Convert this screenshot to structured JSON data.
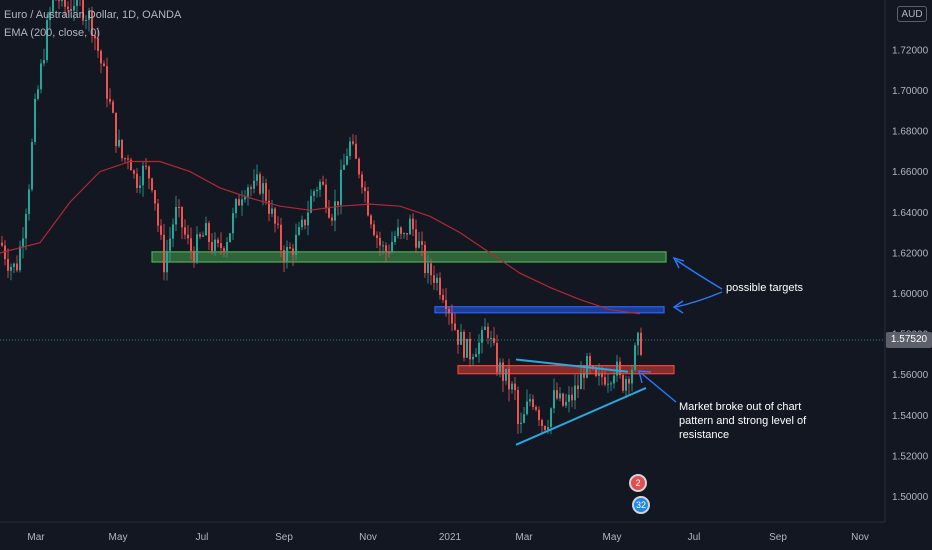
{
  "header": {
    "title": "Euro / Australian Dollar, 1D, OANDA",
    "indicator": "EMA (200, close, 0)",
    "currency": "AUD"
  },
  "last_price": "1.57520",
  "annotations": {
    "targets": "possible targets",
    "breakout": "Market broke out of chart pattern and strong level of resistance"
  },
  "events": {
    "count_top": "2",
    "count_bottom": "32"
  },
  "colors": {
    "background": "#131722",
    "up": "#26a69a",
    "down": "#ef5350",
    "ema": "#b22833",
    "zone_green": "#4caf50",
    "zone_blue": "#2962ff",
    "zone_red": "#f44336",
    "trendline": "#29a8e0",
    "arrow": "#2979ff"
  },
  "chart_data": {
    "type": "candlestick",
    "symbol": "Euro / Australian Dollar",
    "timeframe": "1D",
    "source": "OANDA",
    "x_ticks": [
      "Mar",
      "May",
      "Jul",
      "Sep",
      "Nov",
      "2021",
      "Mar",
      "May",
      "Jul",
      "Sep",
      "Nov"
    ],
    "y_ticks": [
      "1.72000",
      "1.70000",
      "1.68000",
      "1.66000",
      "1.64000",
      "1.62000",
      "1.60000",
      "1.58000",
      "1.56000",
      "1.54000",
      "1.52000",
      "1.50000"
    ],
    "ylim": [
      1.4875,
      1.7445
    ],
    "last_price": 1.5752,
    "price_path": [
      [
        0,
        1.625
      ],
      [
        8,
        1.615
      ],
      [
        15,
        1.612
      ],
      [
        20,
        1.625
      ],
      [
        28,
        1.655
      ],
      [
        34,
        1.69
      ],
      [
        40,
        1.71
      ],
      [
        46,
        1.73
      ],
      [
        52,
        1.745
      ],
      [
        58,
        1.745
      ],
      [
        66,
        1.74
      ],
      [
        74,
        1.745
      ],
      [
        82,
        1.74
      ],
      [
        90,
        1.735
      ],
      [
        97,
        1.72
      ],
      [
        104,
        1.705
      ],
      [
        110,
        1.69
      ],
      [
        116,
        1.675
      ],
      [
        122,
        1.665
      ],
      [
        128,
        1.67
      ],
      [
        134,
        1.655
      ],
      [
        140,
        1.66
      ],
      [
        146,
        1.66
      ],
      [
        152,
        1.655
      ],
      [
        158,
        1.63
      ],
      [
        163,
        1.615
      ],
      [
        168,
        1.625
      ],
      [
        174,
        1.64
      ],
      [
        180,
        1.635
      ],
      [
        186,
        1.625
      ],
      [
        192,
        1.62
      ],
      [
        198,
        1.625
      ],
      [
        204,
        1.63
      ],
      [
        210,
        1.625
      ],
      [
        216,
        1.62
      ],
      [
        222,
        1.625
      ],
      [
        228,
        1.63
      ],
      [
        234,
        1.64
      ],
      [
        240,
        1.65
      ],
      [
        246,
        1.655
      ],
      [
        252,
        1.65
      ],
      [
        258,
        1.655
      ],
      [
        264,
        1.65
      ],
      [
        270,
        1.64
      ],
      [
        276,
        1.63
      ],
      [
        282,
        1.62
      ],
      [
        288,
        1.62
      ],
      [
        294,
        1.625
      ],
      [
        300,
        1.63
      ],
      [
        306,
        1.64
      ],
      [
        312,
        1.65
      ],
      [
        318,
        1.655
      ],
      [
        324,
        1.65
      ],
      [
        330,
        1.64
      ],
      [
        336,
        1.645
      ],
      [
        342,
        1.66
      ],
      [
        348,
        1.675
      ],
      [
        354,
        1.665
      ],
      [
        360,
        1.66
      ],
      [
        366,
        1.645
      ],
      [
        372,
        1.635
      ],
      [
        378,
        1.625
      ],
      [
        384,
        1.62
      ],
      [
        390,
        1.625
      ],
      [
        396,
        1.63
      ],
      [
        402,
        1.625
      ],
      [
        408,
        1.635
      ],
      [
        414,
        1.63
      ],
      [
        420,
        1.62
      ],
      [
        426,
        1.61
      ],
      [
        432,
        1.61
      ],
      [
        438,
        1.605
      ],
      [
        444,
        1.6
      ],
      [
        450,
        1.59
      ],
      [
        456,
        1.58
      ],
      [
        462,
        1.575
      ],
      [
        468,
        1.57
      ],
      [
        474,
        1.575
      ],
      [
        480,
        1.575
      ],
      [
        486,
        1.585
      ],
      [
        490,
        1.575
      ],
      [
        496,
        1.565
      ],
      [
        502,
        1.56
      ],
      [
        508,
        1.555
      ],
      [
        514,
        1.55
      ],
      [
        518,
        1.53
      ],
      [
        524,
        1.54
      ],
      [
        530,
        1.55
      ],
      [
        536,
        1.545
      ],
      [
        542,
        1.535
      ],
      [
        548,
        1.54
      ],
      [
        554,
        1.55
      ],
      [
        560,
        1.545
      ],
      [
        566,
        1.545
      ],
      [
        572,
        1.55
      ],
      [
        578,
        1.555
      ],
      [
        584,
        1.565
      ],
      [
        590,
        1.56
      ],
      [
        596,
        1.555
      ],
      [
        602,
        1.56
      ],
      [
        608,
        1.56
      ],
      [
        614,
        1.565
      ],
      [
        620,
        1.555
      ],
      [
        626,
        1.56
      ],
      [
        632,
        1.565
      ],
      [
        636,
        1.575
      ],
      [
        640,
        1.575
      ]
    ],
    "ema_200": [
      [
        0,
        1.62
      ],
      [
        40,
        1.625
      ],
      [
        70,
        1.645
      ],
      [
        100,
        1.66
      ],
      [
        130,
        1.665
      ],
      [
        160,
        1.665
      ],
      [
        190,
        1.66
      ],
      [
        220,
        1.652
      ],
      [
        250,
        1.647
      ],
      [
        280,
        1.643
      ],
      [
        310,
        1.641
      ],
      [
        340,
        1.643
      ],
      [
        370,
        1.644
      ],
      [
        400,
        1.643
      ],
      [
        430,
        1.638
      ],
      [
        460,
        1.63
      ],
      [
        490,
        1.62
      ],
      [
        520,
        1.61
      ],
      [
        550,
        1.603
      ],
      [
        580,
        1.597
      ],
      [
        610,
        1.592
      ],
      [
        640,
        1.59
      ]
    ],
    "zones": [
      {
        "color": "green",
        "from": 1.6155,
        "to": 1.6205
      },
      {
        "color": "blue",
        "from": 1.5905,
        "to": 1.5935
      },
      {
        "color": "red",
        "from": 1.5605,
        "to": 1.5645
      }
    ],
    "trendlines": [
      {
        "name": "upper",
        "from": [
          516,
          1.5675
        ],
        "to": [
          628,
          1.5615
        ]
      },
      {
        "name": "lower",
        "from": [
          516,
          1.5255
        ],
        "to": [
          646,
          1.5535
        ]
      }
    ],
    "grid": false
  }
}
